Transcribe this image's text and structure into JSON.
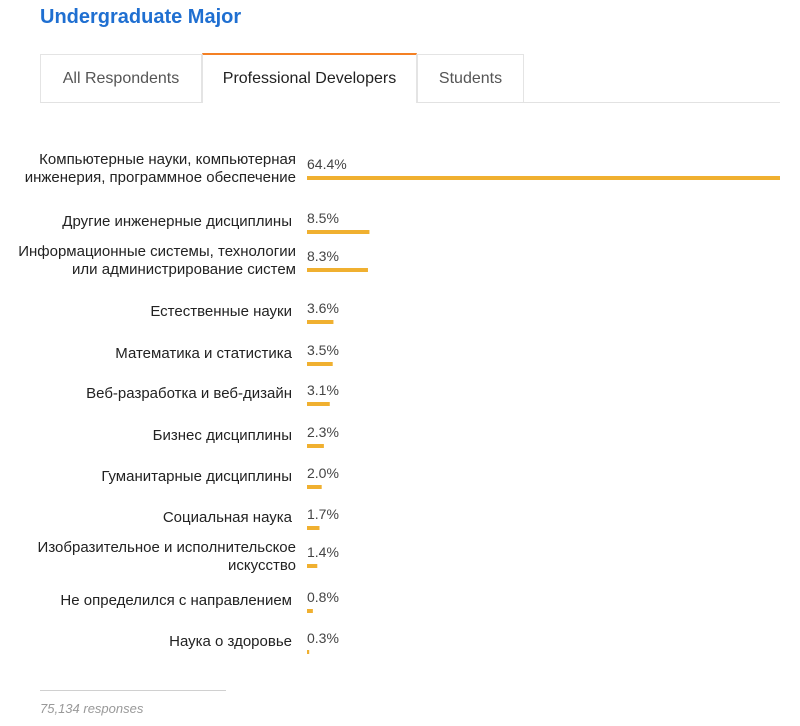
{
  "header": {
    "title": "Undergraduate Major"
  },
  "tabs": [
    {
      "label": "All Respondents"
    },
    {
      "label": "Professional Developers"
    },
    {
      "label": "Students"
    }
  ],
  "colors": {
    "accent": "#f0b030",
    "tab_accent": "#f48024",
    "title": "#1f6fd1"
  },
  "chart_data": {
    "type": "bar",
    "orientation": "horizontal",
    "title": "Undergraduate Major",
    "categories": [
      [
        "Компьютерные науки, компьютерная",
        "инженерия, программное обеспечение"
      ],
      [
        "Другие инженерные дисциплины"
      ],
      [
        "Информационные системы, технологии",
        "или администрирование систем"
      ],
      [
        "Естественные науки"
      ],
      [
        "Математика и статистика"
      ],
      [
        "Веб-разработка и веб-дизайн"
      ],
      [
        "Бизнес дисциплины"
      ],
      [
        "Гуманитарные дисциплины"
      ],
      [
        "Социальная наука"
      ],
      [
        "Изобразительное и исполнительское",
        "искусство"
      ],
      [
        "Не определился с направлением"
      ],
      [
        "Наука о здоровье"
      ]
    ],
    "values": [
      64.4,
      8.5,
      8.3,
      3.6,
      3.5,
      3.1,
      2.3,
      2.0,
      1.7,
      1.4,
      0.8,
      0.3
    ],
    "value_labels": [
      "64.4%",
      "8.5%",
      "8.3%",
      "3.6%",
      "3.5%",
      "3.1%",
      "2.3%",
      "2.0%",
      "1.7%",
      "1.4%",
      "0.8%",
      "0.3%"
    ],
    "xlim": [
      0,
      64.4
    ]
  },
  "footer": {
    "responses": "75,134 responses"
  }
}
